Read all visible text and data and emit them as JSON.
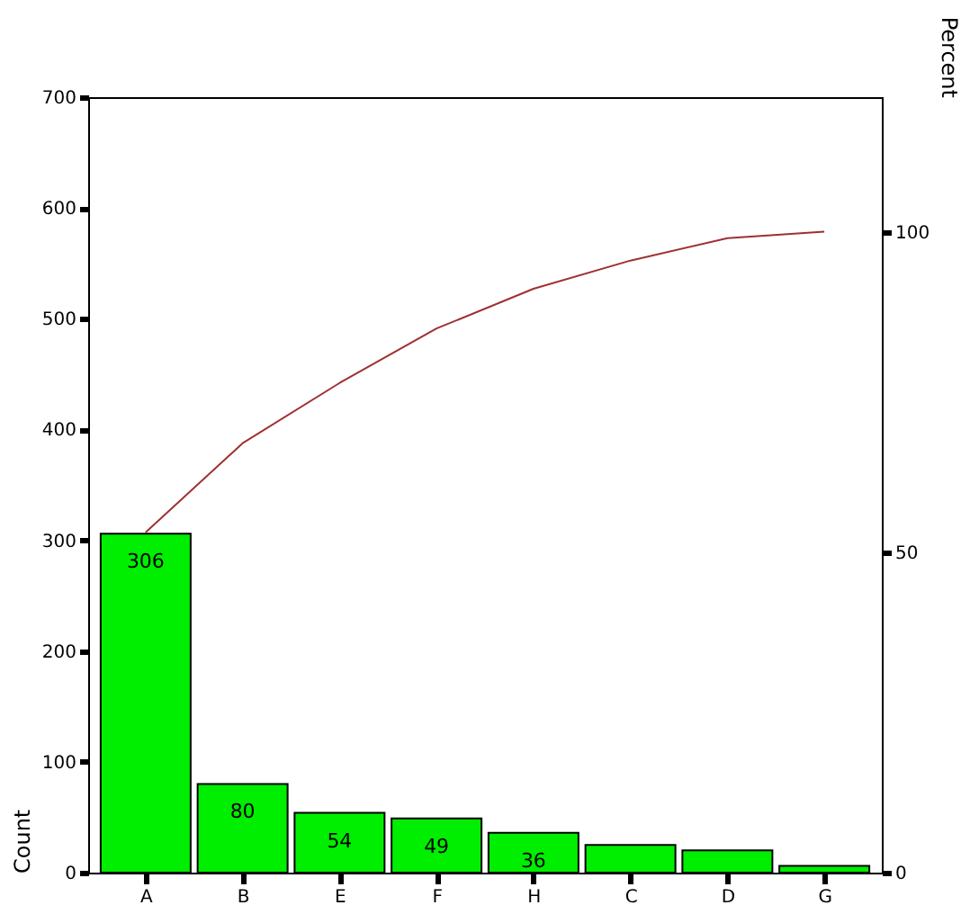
{
  "chart_data": {
    "type": "bar",
    "ylabel": "Count",
    "y2label": "Percent",
    "categories": [
      "A",
      "B",
      "E",
      "F",
      "H",
      "C",
      "D",
      "G"
    ],
    "series": [
      {
        "color": "#00ee00",
        "values": [
          306,
          80,
          54,
          49,
          36,
          25,
          20,
          6
        ],
        "value_labels": [
          "306",
          "80",
          "54",
          "49",
          "36",
          null,
          null,
          null
        ]
      },
      {
        "type": "line",
        "axis": "y2",
        "color": "#a03030",
        "values": [
          53.1,
          67.0,
          76.4,
          84.9,
          91.1,
          95.5,
          99.0,
          100
        ]
      }
    ],
    "ylim": [
      0,
      700
    ],
    "yticks": [
      0,
      100,
      200,
      300,
      400,
      500,
      600,
      700
    ],
    "y2lim": [
      0,
      121
    ],
    "y2ticks": [
      0,
      50,
      100
    ],
    "grid": false
  }
}
